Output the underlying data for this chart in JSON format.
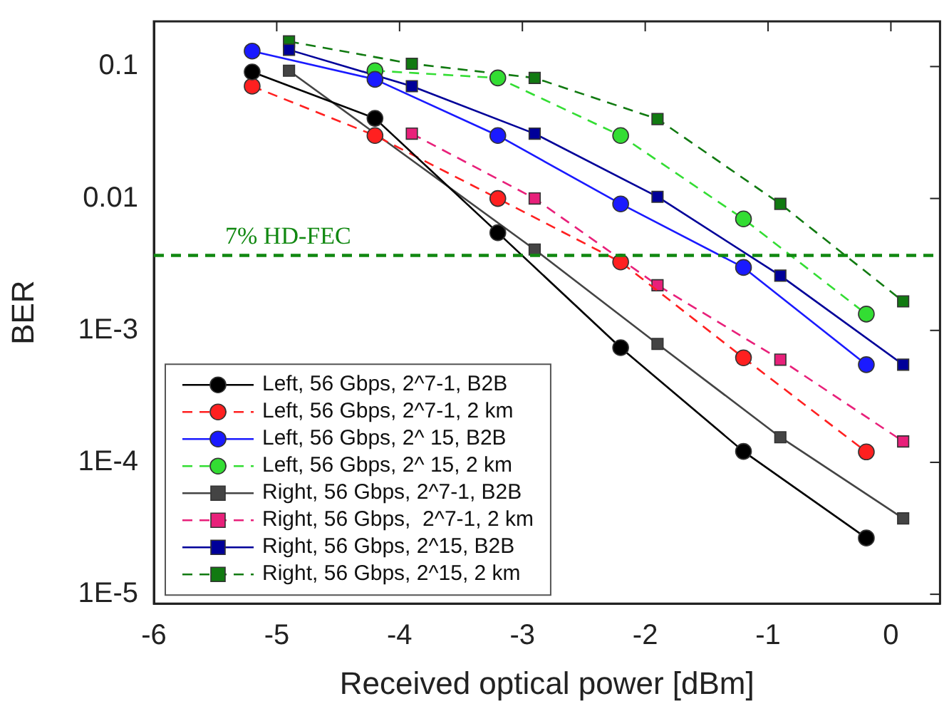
{
  "chart_data": {
    "type": "line",
    "xlabel": "Received optical power [dBm]",
    "ylabel": "BER",
    "log": "y",
    "grid": false,
    "legend": "bottom left",
    "xlim": [
      -6,
      0.4
    ],
    "xticks": [
      -6,
      -5,
      -4,
      -3,
      -2,
      -1,
      0
    ],
    "ylim": [
      8.5e-06,
      0.22
    ],
    "yticks": [
      {
        "value": 0.1,
        "label": "0.1"
      },
      {
        "value": 0.01,
        "label": "0.01"
      },
      {
        "value": 0.001,
        "label": "1E-3"
      },
      {
        "value": 0.0001,
        "label": "1E-4"
      },
      {
        "value": 1e-05,
        "label": "1E-5"
      }
    ],
    "ref_lines": [
      {
        "axis": "y",
        "value": 0.0037,
        "label": "7% HD-FEC",
        "color": "#118811",
        "line_style": "dashed"
      }
    ],
    "series": [
      {
        "name": "Left, 56 Gbps, 2^7-1, B2B",
        "color": "#000000",
        "marker": "circle",
        "line_style": "solid",
        "x": [
          -5.2,
          -4.2,
          -3.2,
          -2.2,
          -1.2,
          -0.2
        ],
        "values": [
          0.091,
          0.0405,
          0.0055,
          0.00074,
          0.000121,
          2.67e-05
        ]
      },
      {
        "name": "Left, 56 Gbps, 2^7-1, 2 km",
        "color": "#ff2020",
        "marker": "circle",
        "line_style": "dashed",
        "x": [
          -5.2,
          -4.2,
          -3.2,
          -2.2,
          -1.2,
          -0.2
        ],
        "values": [
          0.071,
          0.03,
          0.01,
          0.0033,
          0.00062,
          0.00012
        ]
      },
      {
        "name": "Left, 56 Gbps, 2^ 15, B2B",
        "color": "#1a1aff",
        "marker": "circle",
        "line_style": "solid",
        "x": [
          -5.2,
          -4.2,
          -3.2,
          -2.2,
          -1.2,
          -0.2
        ],
        "values": [
          0.131,
          0.08,
          0.03,
          0.0091,
          0.003,
          0.00055
        ]
      },
      {
        "name": "Left, 56 Gbps, 2^ 15, 2 km",
        "color": "#33dd33",
        "marker": "circle",
        "line_style": "dashed",
        "x": [
          -4.2,
          -3.2,
          -2.2,
          -1.2,
          -0.2
        ],
        "values": [
          0.093,
          0.082,
          0.03,
          0.007,
          0.00133
        ]
      },
      {
        "name": "Right, 56 Gbps, 2^7-1, B2B",
        "color": "#444444",
        "marker": "square",
        "line_style": "solid",
        "x": [
          -4.9,
          -2.9,
          -1.9,
          -0.9,
          0.1
        ],
        "values": [
          0.093,
          0.0041,
          0.00079,
          0.000155,
          3.76e-05
        ]
      },
      {
        "name": "Right, 56 Gbps,  2^7-1, 2 km",
        "color": "#e8207a",
        "marker": "square",
        "line_style": "dashed",
        "x": [
          -3.9,
          -2.9,
          -1.9,
          -0.9,
          0.1
        ],
        "values": [
          0.031,
          0.01,
          0.0022,
          0.0006,
          0.000144
        ]
      },
      {
        "name": "Right, 56 Gbps, 2^15, B2B",
        "color": "#000099",
        "marker": "square",
        "line_style": "solid",
        "x": [
          -4.9,
          -3.9,
          -2.9,
          -1.9,
          -0.9,
          0.1
        ],
        "values": [
          0.134,
          0.071,
          0.031,
          0.0103,
          0.0026,
          0.00055
        ]
      },
      {
        "name": "Right, 56 Gbps, 2^15, 2 km",
        "color": "#117a11",
        "marker": "square",
        "line_style": "dashed",
        "x": [
          -4.9,
          -3.9,
          -2.9,
          -1.9,
          -0.9,
          0.1
        ],
        "values": [
          0.155,
          0.105,
          0.082,
          0.04,
          0.0091,
          0.00166
        ]
      }
    ]
  }
}
